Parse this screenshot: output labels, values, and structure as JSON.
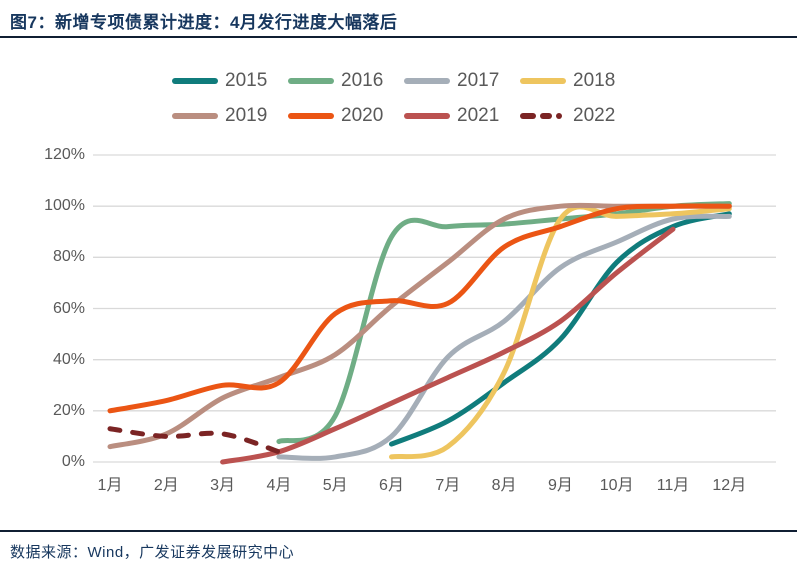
{
  "header": {
    "title": "图7：新增专项债累计进度：4月发行进度大幅落后"
  },
  "footer": {
    "source": "数据来源：Wind，广发证券发展研究中心"
  },
  "colors": {
    "title_navy": "#17375e",
    "rule_dark": "#101f33",
    "axis_text": "#595959",
    "gridline": "#d9d9d9"
  },
  "chart_data": {
    "type": "line",
    "title": "新增专项债累计进度（累计发行进度 %）",
    "x": [
      1,
      2,
      3,
      4,
      5,
      6,
      7,
      8,
      9,
      10,
      11,
      12
    ],
    "x_tick_labels": [
      "1月",
      "2月",
      "3月",
      "4月",
      "5月",
      "6月",
      "7月",
      "8月",
      "9月",
      "10月",
      "11月",
      "12月"
    ],
    "y_tick_labels": [
      "0%",
      "20%",
      "40%",
      "60%",
      "80%",
      "100%",
      "120%"
    ],
    "y_ticks": [
      0,
      20,
      40,
      60,
      80,
      100,
      120
    ],
    "ylim": [
      0,
      120
    ],
    "grid": "horizontal",
    "legend_position": "top",
    "series": [
      {
        "name": "2015",
        "color": "#107c7c",
        "style": "solid",
        "values": [
          null,
          null,
          null,
          null,
          null,
          7,
          16,
          31,
          48,
          78,
          92,
          97
        ]
      },
      {
        "name": "2016",
        "color": "#6fad85",
        "style": "solid",
        "values": [
          null,
          null,
          null,
          8,
          18,
          88,
          92,
          93,
          95,
          97,
          100,
          101
        ]
      },
      {
        "name": "2017",
        "color": "#a5aeb8",
        "style": "solid",
        "values": [
          null,
          null,
          null,
          2,
          2,
          10,
          41,
          55,
          76,
          86,
          95,
          96
        ]
      },
      {
        "name": "2018",
        "color": "#eec55f",
        "style": "solid",
        "values": [
          null,
          null,
          null,
          null,
          null,
          2,
          6,
          35,
          95,
          96,
          97,
          99
        ]
      },
      {
        "name": "2019",
        "color": "#ba8e80",
        "style": "solid",
        "values": [
          6,
          11,
          25,
          33,
          42,
          61,
          78,
          95,
          100,
          100,
          100,
          100
        ]
      },
      {
        "name": "2020",
        "color": "#eb5514",
        "style": "solid",
        "values": [
          20,
          24,
          30,
          31,
          58,
          63,
          62,
          84,
          92,
          99,
          100,
          100
        ]
      },
      {
        "name": "2021",
        "color": "#bb5250",
        "style": "solid",
        "values": [
          null,
          null,
          0,
          4,
          13,
          23,
          33,
          43,
          55,
          74,
          91,
          null
        ]
      },
      {
        "name": "2022",
        "color": "#7b2424",
        "style": "dashed",
        "values": [
          13,
          10,
          11,
          4,
          null,
          null,
          null,
          null,
          null,
          null,
          null,
          null
        ]
      }
    ]
  }
}
